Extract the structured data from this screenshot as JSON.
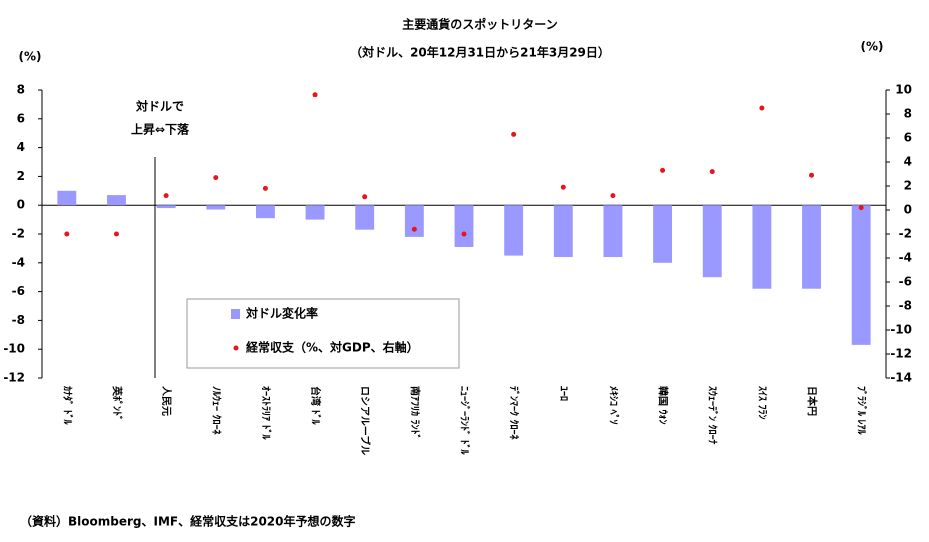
{
  "chart_data": {
    "type": "bar",
    "title": "主要通貨のスポットリターン",
    "subtitle": "（対ドル、20年12月31日から21年3月29日）",
    "y_label": "(%)",
    "y2_label": "(%)",
    "annotations": [
      "対ドルで",
      "上昇⇔下落"
    ],
    "source": "（資料）Bloomberg、IMF、経常収支は2020年予想の数字",
    "categories": [
      "ｶﾅﾀﾞ ﾄﾞﾙ",
      "英ﾎﾟﾝﾄﾞ",
      "人民元",
      "ﾉﾙｳｪｰ ｸﾛｰﾈ",
      "ｵｰｽﾄﾗﾘｱ ﾄﾞﾙ",
      "台湾 ﾄﾞﾙ",
      "ロシアルーブル",
      "南ｱﾌﾘｶ ﾗﾝﾄﾞ",
      "ﾆｭｰｼﾞｰﾗﾝﾄﾞ ﾄﾞﾙ",
      "ﾃﾞﾝﾏｰｸ ｸﾛｰﾈ",
      "ﾕｰﾛ",
      "ﾒｷｼｺ ﾍﾟｿ",
      "韓国 ｳｫﾝ",
      "ｽｳｪｰﾃﾞﾝ ｸﾛｰﾅ",
      "ｽｲｽ ﾌﾗﾝ",
      "日本円",
      "ﾌﾞﾗｼﾞﾙ ﾚｱﾙ"
    ],
    "series": [
      {
        "name": "対ドル変化率",
        "type": "bar",
        "color": "#9999ff",
        "values": [
          1.0,
          0.7,
          -0.2,
          -0.3,
          -0.9,
          -1.0,
          -1.7,
          -2.2,
          -2.9,
          -3.5,
          -3.6,
          -3.6,
          -4.0,
          -5.0,
          -5.8,
          -5.8,
          -9.7
        ]
      },
      {
        "name": "経常収支（%、対GDP、右軸）",
        "type": "scatter",
        "axis": "y2",
        "color": "#e8141e",
        "values": [
          -2.0,
          -2.0,
          1.2,
          2.7,
          1.8,
          9.6,
          1.1,
          -1.6,
          -2.0,
          6.3,
          1.9,
          1.2,
          3.3,
          3.2,
          8.5,
          2.9,
          0.2
        ]
      }
    ],
    "ylim": [
      -12,
      8
    ],
    "yticks": [
      8,
      6,
      4,
      2,
      0,
      -2,
      -4,
      -6,
      -8,
      -10,
      -12
    ],
    "y2lim": [
      -14,
      10
    ],
    "y2ticks": [
      10,
      8,
      6,
      4,
      2,
      0,
      -2,
      -4,
      -6,
      -8,
      -10,
      -12,
      -14
    ]
  }
}
